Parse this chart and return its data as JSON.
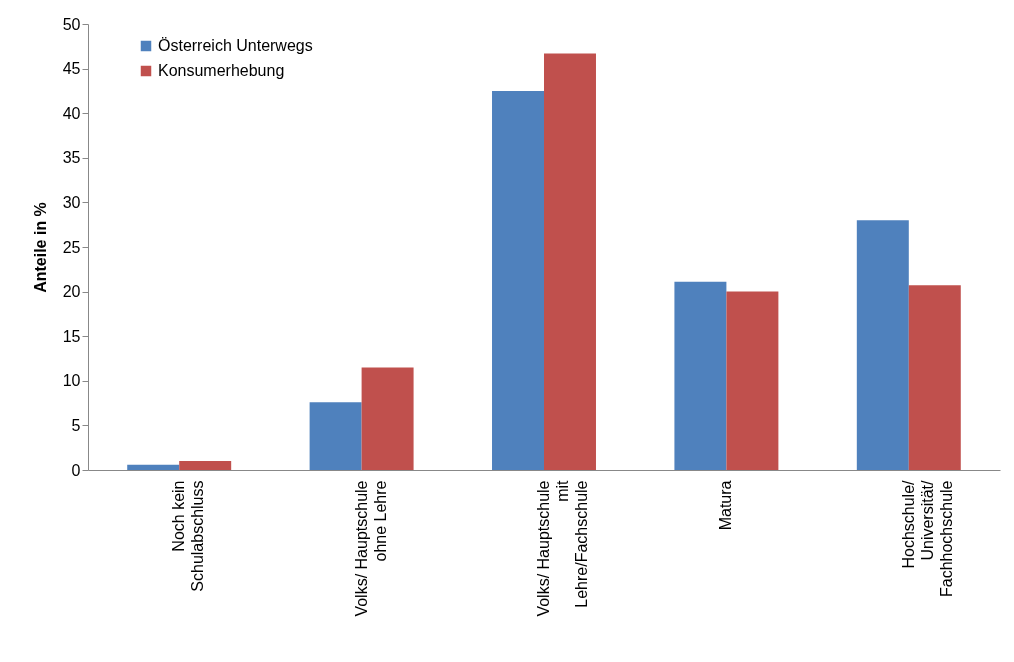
{
  "chart_data": {
    "type": "bar",
    "ylabel": "Anteile in %",
    "categories": [
      "Noch kein\nSchulabschluss",
      "Volks/ Hauptschule\nohne Lehre",
      "Volks/ Hauptschule\nmit\nLehre/Fachschule",
      "Matura",
      "Hochschule/\nUniversität/\nFachhochschule"
    ],
    "series": [
      {
        "name": "Österreich Unterwegs",
        "color": "#4f81bd",
        "values": [
          0.6,
          7.6,
          42.5,
          21.1,
          28.0
        ]
      },
      {
        "name": "Konsumerhebung",
        "color": "#c0504d",
        "values": [
          1.0,
          11.5,
          46.7,
          20.0,
          20.7
        ]
      }
    ],
    "ylim": [
      0,
      50
    ],
    "yticks": [
      0,
      5,
      10,
      15,
      20,
      25,
      30,
      35,
      40,
      45,
      50
    ],
    "grid": false,
    "legend": "top left"
  }
}
